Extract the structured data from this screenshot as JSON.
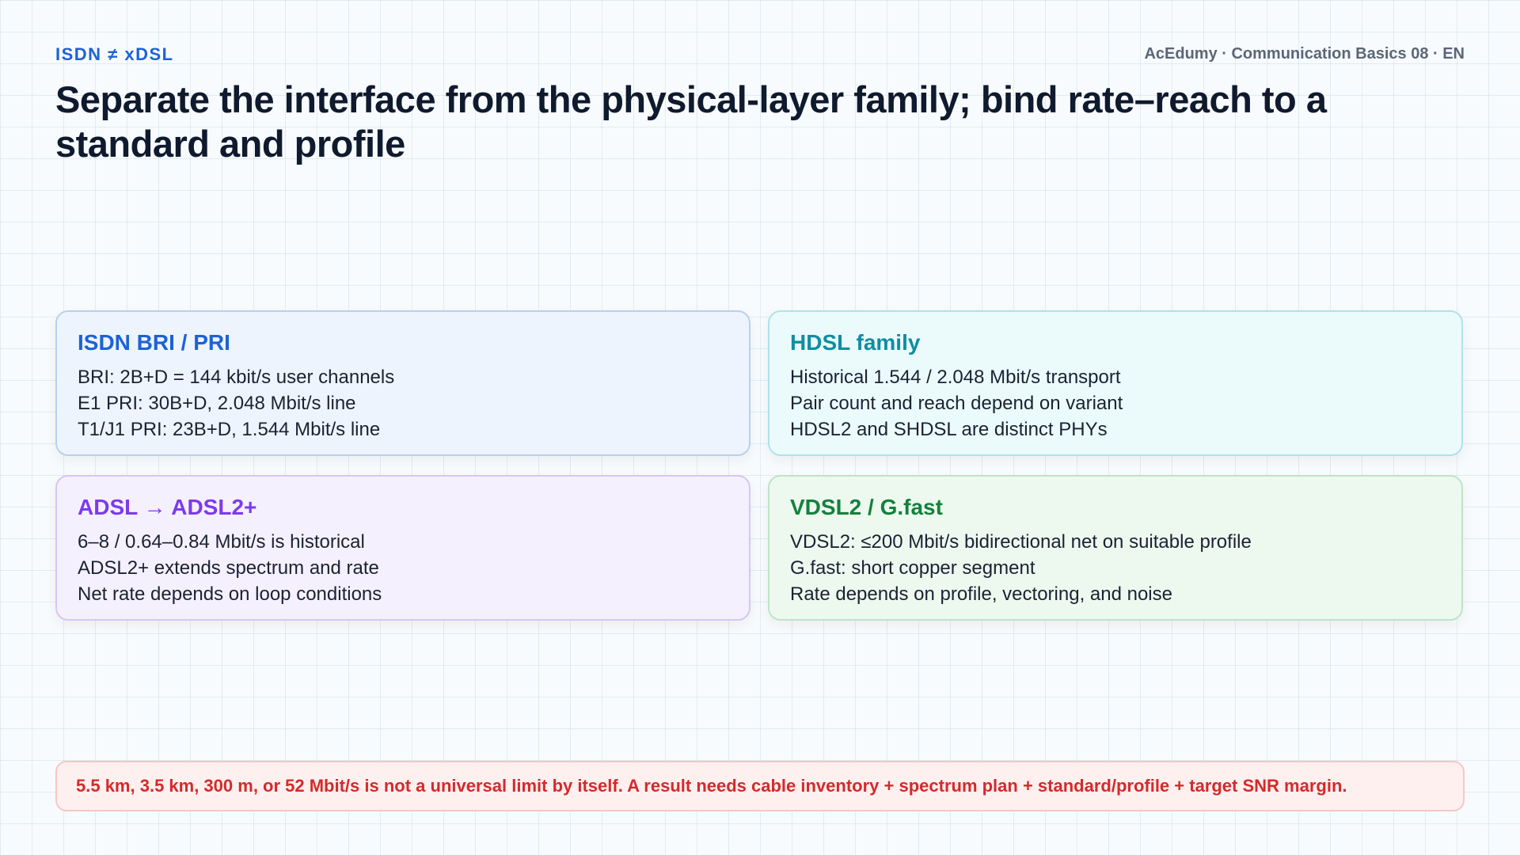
{
  "header": {
    "eyebrow": "ISDN ≠ xDSL",
    "meta": "AcEdumy · Communication Basics 08 · EN",
    "title": "Separate the interface from the physical-layer family; bind rate–reach to a standard and profile"
  },
  "cards": [
    {
      "title": "ISDN BRI / PRI",
      "title_color": "#1d62d6",
      "lines": [
        "BRI: 2B+D = 144 kbit/s user channels",
        "E1 PRI: 30B+D, 2.048 Mbit/s line",
        "T1/J1 PRI: 23B+D, 1.544 Mbit/s line"
      ]
    },
    {
      "title": "HDSL family",
      "title_color": "#0e8ea3",
      "lines": [
        "Historical 1.544 / 2.048 Mbit/s transport",
        "Pair count and reach depend on variant",
        "HDSL2 and SHDSL are distinct PHYs"
      ]
    },
    {
      "title": "ADSL → ADSL2+",
      "title_color": "#7c3aed",
      "lines": [
        "6–8 / 0.64–0.84 Mbit/s is historical",
        "ADSL2+ extends spectrum and rate",
        "Net rate depends on loop conditions"
      ]
    },
    {
      "title": "VDSL2 / G.fast",
      "title_color": "#15803d",
      "lines": [
        "VDSL2: ≤200 Mbit/s bidirectional net on suitable profile",
        "G.fast: short copper segment",
        "Rate depends on profile, vectoring, and noise"
      ]
    }
  ],
  "note": "5.5 km, 3.5 km, 300 m, or 52 Mbit/s is not a universal limit by itself. A result needs cable inventory + spectrum plan + standard/profile + target SNR margin."
}
